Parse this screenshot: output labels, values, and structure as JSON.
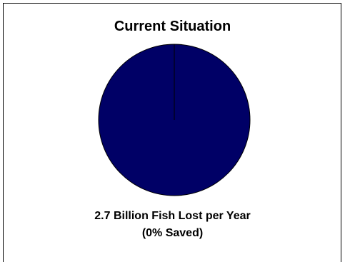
{
  "chart_data": {
    "type": "pie",
    "title": "Current Situation",
    "slices": [
      {
        "label": "Lost",
        "value": 100,
        "color": "#000066"
      },
      {
        "label": "Saved",
        "value": 0,
        "color": "#ffffff"
      }
    ],
    "caption_line1": "2.7 Billion Fish Lost per Year",
    "caption_line2": "(0% Saved)"
  }
}
